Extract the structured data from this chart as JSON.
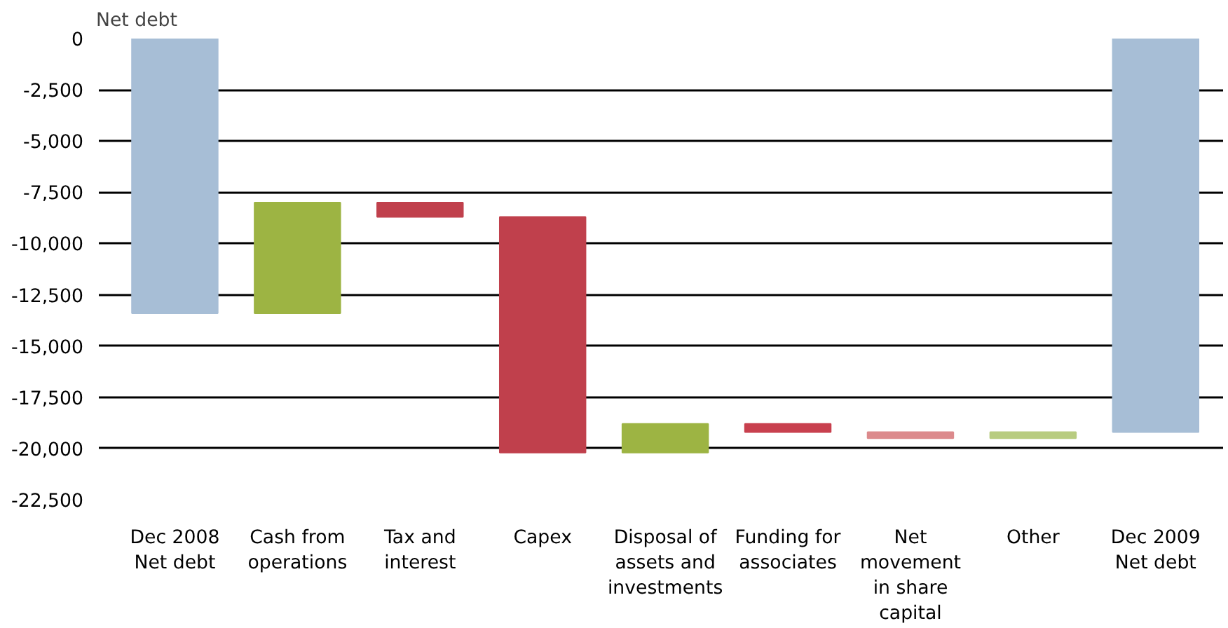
{
  "chart_data": {
    "type": "bar",
    "ylabel": "Net debt",
    "categories": [
      "Dec 2008\nNet debt",
      "Cash from\noperations",
      "Tax and\ninterest",
      "Capex",
      "Disposal of\nassets and\ninvestments",
      "Funding for\nassociates",
      "Net\nmovement\nin share\ncapital",
      "Other",
      "Dec 2009\nNet debt"
    ],
    "base": [
      0,
      -13400,
      -8000,
      -8700,
      -20200,
      -18800,
      -19200,
      -19500,
      0
    ],
    "values": [
      -13400,
      5400,
      -700,
      -11500,
      1400,
      -400,
      -300,
      300,
      -19200
    ],
    "colors": [
      "#a7bed6",
      "#9db443",
      "#c0404c",
      "#c0404c",
      "#9db443",
      "#c8404e",
      "#dc8a8c",
      "#b8cc80",
      "#a7bed6"
    ],
    "ylim": [
      -22500,
      0
    ],
    "yticks": [
      {
        "value": 0,
        "label": "0"
      },
      {
        "value": -2500,
        "label": "-2,500"
      },
      {
        "value": -5000,
        "label": "-5,000"
      },
      {
        "value": -7500,
        "label": "-7,500"
      },
      {
        "value": -10000,
        "label": "-10,000"
      },
      {
        "value": -12500,
        "label": "-12,500"
      },
      {
        "value": -15000,
        "label": "-15,000"
      },
      {
        "value": -17500,
        "label": "-17,500"
      },
      {
        "value": -20000,
        "label": "-20,000"
      },
      {
        "value": -22500,
        "label": "-22,500"
      }
    ],
    "grid": "y"
  }
}
